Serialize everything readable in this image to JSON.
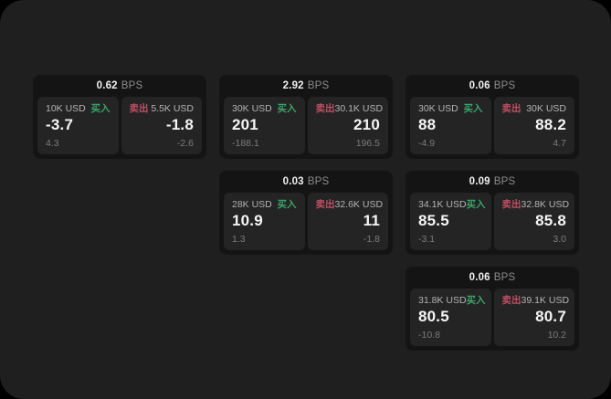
{
  "labels": {
    "buy": "买入",
    "sell": "卖出",
    "bps_unit": "BPS"
  },
  "colors": {
    "background": "#1f1f1f",
    "card": "#141414",
    "panel": "#242424",
    "buy_green": "#3ca36a",
    "sell_red": "#bf4e66",
    "primary_text": "#f5f5f5",
    "muted_text": "#7c7c7c"
  },
  "cards": [
    {
      "bps": "0.62",
      "buy": {
        "amount": "10K USD",
        "price": "-3.7",
        "sub": "4.3"
      },
      "sell": {
        "amount": "5.5K USD",
        "price": "-1.8",
        "sub": "-2.6"
      }
    },
    {
      "bps": "2.92",
      "buy": {
        "amount": "30K USD",
        "price": "201",
        "sub": "-188.1"
      },
      "sell": {
        "amount": "30.1K USD",
        "price": "210",
        "sub": "196.5"
      }
    },
    {
      "bps": "0.06",
      "buy": {
        "amount": "30K USD",
        "price": "88",
        "sub": "-4.9"
      },
      "sell": {
        "amount": "30K USD",
        "price": "88.2",
        "sub": "4.7"
      }
    },
    {
      "bps": "0.03",
      "buy": {
        "amount": "28K USD",
        "price": "10.9",
        "sub": "1.3"
      },
      "sell": {
        "amount": "32.6K USD",
        "price": "11",
        "sub": "-1.8"
      }
    },
    {
      "bps": "0.09",
      "buy": {
        "amount": "34.1K USD",
        "price": "85.5",
        "sub": "-3.1"
      },
      "sell": {
        "amount": "32.8K USD",
        "price": "85.8",
        "sub": "3.0"
      }
    },
    {
      "bps": "0.06",
      "buy": {
        "amount": "31.8K USD",
        "price": "80.5",
        "sub": "-10.8"
      },
      "sell": {
        "amount": "39.1K USD",
        "price": "80.7",
        "sub": "10.2"
      }
    }
  ]
}
